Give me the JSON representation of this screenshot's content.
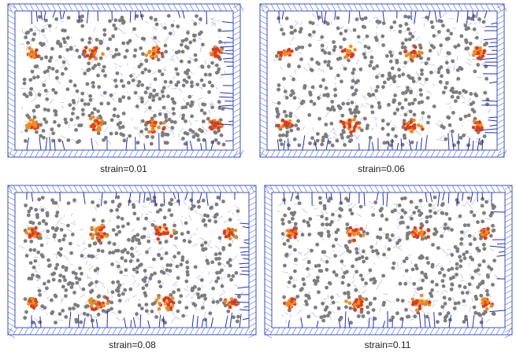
{
  "panels": [
    {
      "caption": "strain=0.01"
    },
    {
      "caption": "strain=0.06"
    },
    {
      "caption": "strain=0.08"
    },
    {
      "caption": "strain=0.11"
    }
  ]
}
